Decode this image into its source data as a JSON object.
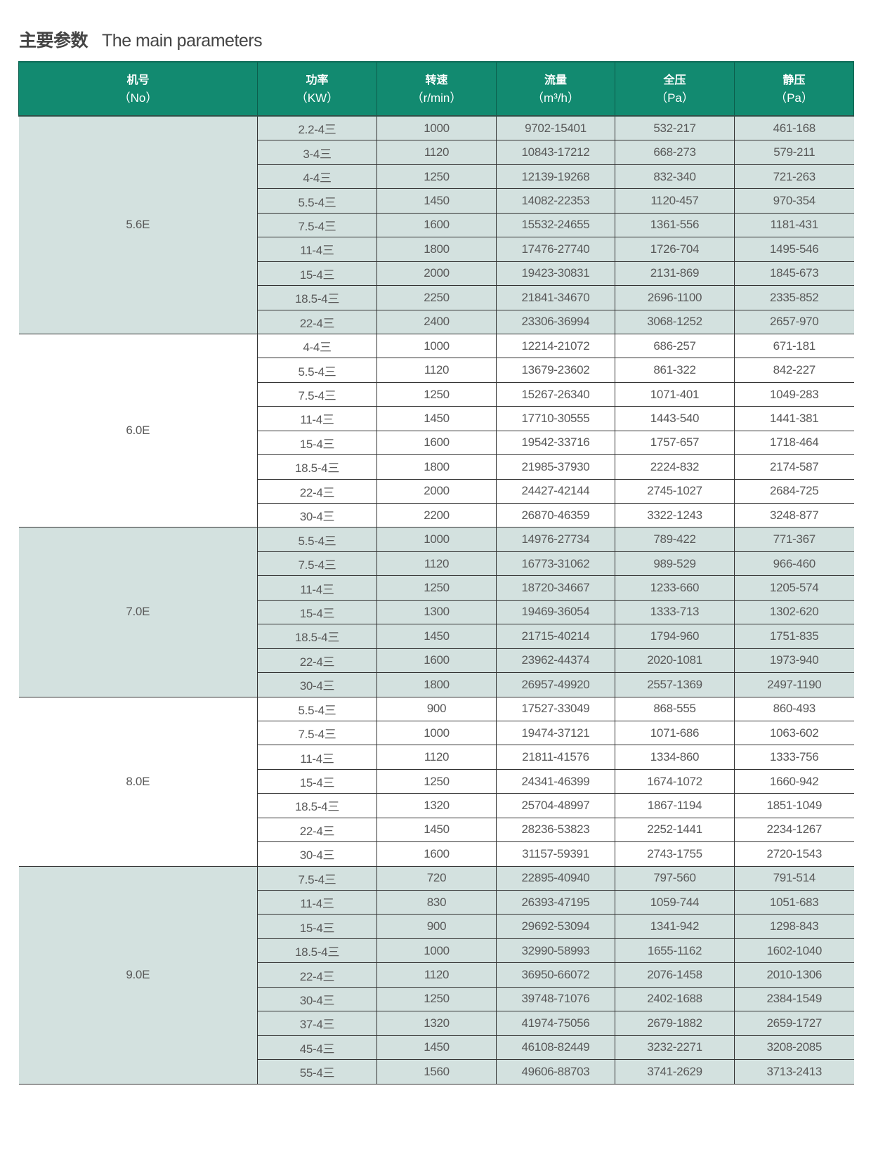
{
  "title": {
    "cn": "主要参数",
    "en": "The main parameters"
  },
  "colors": {
    "header_bg": "#128a70",
    "shade_bg": "#d3e1df"
  },
  "headers": [
    {
      "cn": "机号",
      "unit": "（No）"
    },
    {
      "cn": "功率",
      "unit": "（KW）"
    },
    {
      "cn": "转速",
      "unit": "（r/min）"
    },
    {
      "cn": "流量",
      "unit": "（m³/h）"
    },
    {
      "cn": "全压",
      "unit": "（Pa）"
    },
    {
      "cn": "静压",
      "unit": "（Pa）"
    }
  ],
  "groups": [
    {
      "no": "5.6E",
      "shaded": true,
      "rows": [
        [
          "2.2-4三",
          "1000",
          "9702-15401",
          "532-217",
          "461-168"
        ],
        [
          "3-4三",
          "1120",
          "10843-17212",
          "668-273",
          "579-211"
        ],
        [
          "4-4三",
          "1250",
          "12139-19268",
          "832-340",
          "721-263"
        ],
        [
          "5.5-4三",
          "1450",
          "14082-22353",
          "1120-457",
          "970-354"
        ],
        [
          "7.5-4三",
          "1600",
          "15532-24655",
          "1361-556",
          "1181-431"
        ],
        [
          "11-4三",
          "1800",
          "17476-27740",
          "1726-704",
          "1495-546"
        ],
        [
          "15-4三",
          "2000",
          "19423-30831",
          "2131-869",
          "1845-673"
        ],
        [
          "18.5-4三",
          "2250",
          "21841-34670",
          "2696-1100",
          "2335-852"
        ],
        [
          "22-4三",
          "2400",
          "23306-36994",
          "3068-1252",
          "2657-970"
        ]
      ]
    },
    {
      "no": "6.0E",
      "shaded": false,
      "rows": [
        [
          "4-4三",
          "1000",
          "12214-21072",
          "686-257",
          "671-181"
        ],
        [
          "5.5-4三",
          "1120",
          "13679-23602",
          "861-322",
          "842-227"
        ],
        [
          "7.5-4三",
          "1250",
          "15267-26340",
          "1071-401",
          "1049-283"
        ],
        [
          "11-4三",
          "1450",
          "17710-30555",
          "1443-540",
          "1441-381"
        ],
        [
          "15-4三",
          "1600",
          "19542-33716",
          "1757-657",
          "1718-464"
        ],
        [
          "18.5-4三",
          "1800",
          "21985-37930",
          "2224-832",
          "2174-587"
        ],
        [
          "22-4三",
          "2000",
          "24427-42144",
          "2745-1027",
          "2684-725"
        ],
        [
          "30-4三",
          "2200",
          "26870-46359",
          "3322-1243",
          "3248-877"
        ]
      ]
    },
    {
      "no": "7.0E",
      "shaded": true,
      "rows": [
        [
          "5.5-4三",
          "1000",
          "14976-27734",
          "789-422",
          "771-367"
        ],
        [
          "7.5-4三",
          "1120",
          "16773-31062",
          "989-529",
          "966-460"
        ],
        [
          "11-4三",
          "1250",
          "18720-34667",
          "1233-660",
          "1205-574"
        ],
        [
          "15-4三",
          "1300",
          "19469-36054",
          "1333-713",
          "1302-620"
        ],
        [
          "18.5-4三",
          "1450",
          "21715-40214",
          "1794-960",
          "1751-835"
        ],
        [
          "22-4三",
          "1600",
          "23962-44374",
          "2020-1081",
          "1973-940"
        ],
        [
          "30-4三",
          "1800",
          "26957-49920",
          "2557-1369",
          "2497-1190"
        ]
      ]
    },
    {
      "no": "8.0E",
      "shaded": false,
      "rows": [
        [
          "5.5-4三",
          "900",
          "17527-33049",
          "868-555",
          "860-493"
        ],
        [
          "7.5-4三",
          "1000",
          "19474-37121",
          "1071-686",
          "1063-602"
        ],
        [
          "11-4三",
          "1120",
          "21811-41576",
          "1334-860",
          "1333-756"
        ],
        [
          "15-4三",
          "1250",
          "24341-46399",
          "1674-1072",
          "1660-942"
        ],
        [
          "18.5-4三",
          "1320",
          "25704-48997",
          "1867-1194",
          "1851-1049"
        ],
        [
          "22-4三",
          "1450",
          "28236-53823",
          "2252-1441",
          "2234-1267"
        ],
        [
          "30-4三",
          "1600",
          "31157-59391",
          "2743-1755",
          "2720-1543"
        ]
      ]
    },
    {
      "no": "9.0E",
      "shaded": true,
      "rows": [
        [
          "7.5-4三",
          "720",
          "22895-40940",
          "797-560",
          "791-514"
        ],
        [
          "11-4三",
          "830",
          "26393-47195",
          "1059-744",
          "1051-683"
        ],
        [
          "15-4三",
          "900",
          "29692-53094",
          "1341-942",
          "1298-843"
        ],
        [
          "18.5-4三",
          "1000",
          "32990-58993",
          "1655-1162",
          "1602-1040"
        ],
        [
          "22-4三",
          "1120",
          "36950-66072",
          "2076-1458",
          "2010-1306"
        ],
        [
          "30-4三",
          "1250",
          "39748-71076",
          "2402-1688",
          "2384-1549"
        ],
        [
          "37-4三",
          "1320",
          "41974-75056",
          "2679-1882",
          "2659-1727"
        ],
        [
          "45-4三",
          "1450",
          "46108-82449",
          "3232-2271",
          "3208-2085"
        ],
        [
          "55-4三",
          "1560",
          "49606-88703",
          "3741-2629",
          "3713-2413"
        ]
      ]
    }
  ]
}
